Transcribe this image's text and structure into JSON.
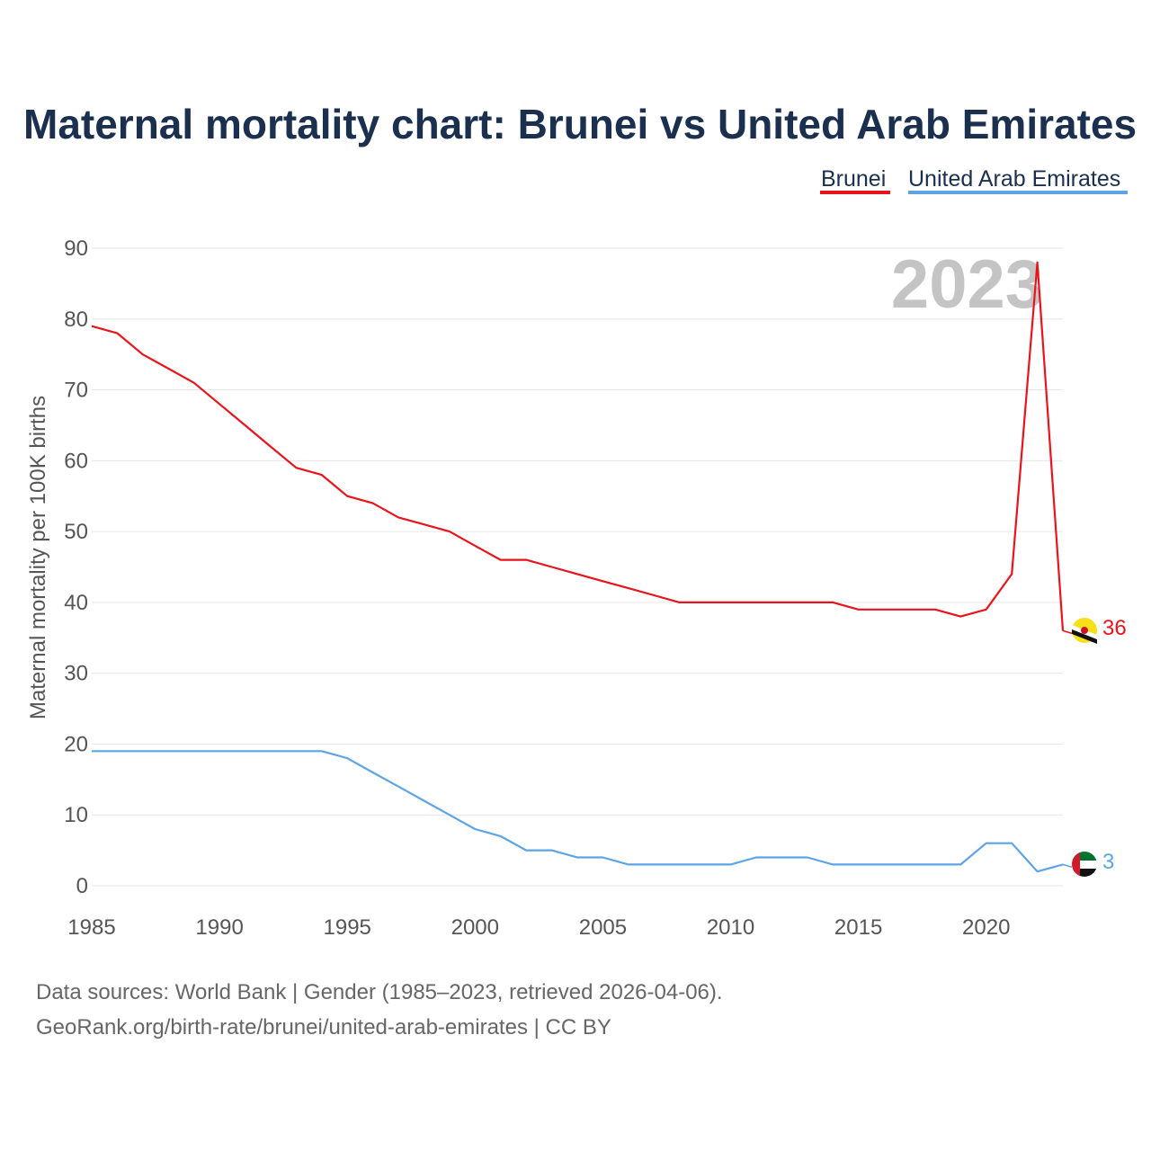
{
  "chart_data": {
    "type": "line",
    "title": "Maternal mortality chart: Brunei vs United Arab Emirates",
    "ylabel": "Maternal mortality per 100K births",
    "xlabel": "",
    "xlim": [
      1985,
      2023
    ],
    "ylim": [
      0,
      90
    ],
    "x_ticks": [
      1985,
      1990,
      1995,
      2000,
      2005,
      2010,
      2015,
      2020
    ],
    "y_ticks": [
      0,
      10,
      20,
      30,
      40,
      50,
      60,
      70,
      80,
      90
    ],
    "grid": true,
    "legend_position": "top-right",
    "watermark_year": "2023",
    "x": [
      1985,
      1986,
      1987,
      1988,
      1989,
      1990,
      1991,
      1992,
      1993,
      1994,
      1995,
      1996,
      1997,
      1998,
      1999,
      2000,
      2001,
      2002,
      2003,
      2004,
      2005,
      2006,
      2007,
      2008,
      2009,
      2010,
      2011,
      2012,
      2013,
      2014,
      2015,
      2016,
      2017,
      2018,
      2019,
      2020,
      2021,
      2022,
      2023
    ],
    "series": [
      {
        "name": "Brunei",
        "color": "#e8141c",
        "end_label": "36",
        "flag": "brunei-flag",
        "values": [
          79,
          78,
          75,
          73,
          71,
          68,
          65,
          62,
          59,
          58,
          55,
          54,
          52,
          51,
          50,
          48,
          46,
          46,
          45,
          44,
          43,
          42,
          41,
          40,
          40,
          40,
          40,
          40,
          40,
          40,
          39,
          39,
          39,
          39,
          38,
          39,
          44,
          88,
          36
        ]
      },
      {
        "name": "United Arab Emirates",
        "color": "#5ca4e3",
        "end_label": "3",
        "flag": "uae-flag",
        "values": [
          19,
          19,
          19,
          19,
          19,
          19,
          19,
          19,
          19,
          19,
          18,
          16,
          14,
          12,
          10,
          8,
          7,
          5,
          5,
          4,
          4,
          3,
          3,
          3,
          3,
          3,
          4,
          4,
          4,
          3,
          3,
          3,
          3,
          3,
          3,
          6,
          6,
          2,
          3
        ]
      }
    ]
  },
  "footer": {
    "line1": "Data sources: World Bank | Gender (1985–2023, retrieved 2026-04-06).",
    "line2": "GeoRank.org/birth-rate/brunei/united-arab-emirates | CC BY"
  }
}
